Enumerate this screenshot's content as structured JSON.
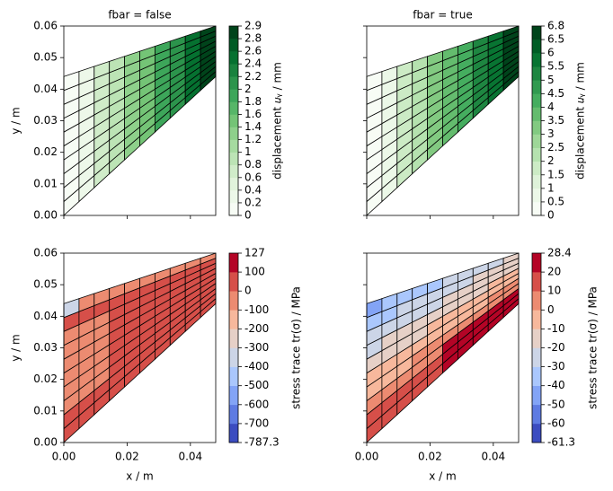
{
  "chart_data": [
    {
      "type": "mesh",
      "title": "fbar = false",
      "ylabel": "y / m",
      "xlim": [
        0,
        0.048
      ],
      "ylim": [
        0,
        0.06
      ],
      "xticks": [
        0,
        0.02,
        0.04
      ],
      "yticks": [
        {
          "value": 0,
          "label": "0.00"
        },
        {
          "value": 0.01,
          "label": "0.01"
        },
        {
          "value": 0.02,
          "label": "0.02"
        },
        {
          "value": 0.03,
          "label": "0.03"
        },
        {
          "value": 0.04,
          "label": "0.04"
        },
        {
          "value": 0.05,
          "label": "0.05"
        },
        {
          "value": 0.06,
          "label": "0.06"
        }
      ],
      "colormap": "Greens",
      "colorbar": {
        "label": "displacement 𝑢ᵧ / mm",
        "ticks": [
          0,
          0.2,
          0.4,
          0.6,
          0.8,
          1,
          1.2,
          1.4,
          1.6,
          1.8,
          2,
          2.2,
          2.4,
          2.6,
          2.8,
          2.9
        ]
      }
    },
    {
      "type": "mesh",
      "title": "fbar = true",
      "xlim": [
        0,
        0.048
      ],
      "ylim": [
        0,
        0.06
      ],
      "xticks": [
        0,
        0.02,
        0.04
      ],
      "yticks": [
        0,
        0.01,
        0.02,
        0.03,
        0.04,
        0.05,
        0.06
      ],
      "colormap": "Greens",
      "colorbar": {
        "label": "displacement 𝑢ᵧ / mm",
        "ticks": [
          0,
          0.5,
          1,
          1.5,
          2,
          2.5,
          3,
          3.5,
          4,
          4.5,
          5,
          5.5,
          6,
          6.5,
          6.8
        ]
      }
    },
    {
      "type": "mesh",
      "xlabel": "x / m",
      "ylabel": "y / m",
      "xlim": [
        0,
        0.048
      ],
      "ylim": [
        0,
        0.06
      ],
      "xticks": [
        {
          "value": 0,
          "label": "0.00"
        },
        {
          "value": 0.02,
          "label": "0.02"
        },
        {
          "value": 0.04,
          "label": "0.04"
        }
      ],
      "yticks": [
        {
          "value": 0,
          "label": "0.00"
        },
        {
          "value": 0.01,
          "label": "0.01"
        },
        {
          "value": 0.02,
          "label": "0.02"
        },
        {
          "value": 0.03,
          "label": "0.03"
        },
        {
          "value": 0.04,
          "label": "0.04"
        },
        {
          "value": 0.05,
          "label": "0.05"
        },
        {
          "value": 0.06,
          "label": "0.06"
        }
      ],
      "colormap": "coolwarm",
      "colorbar": {
        "label": "stress trace tr(σ) / MPa",
        "ticks": [
          -787.3,
          -700,
          -600,
          -500,
          -400,
          -300,
          -200,
          -100,
          0,
          100,
          127
        ]
      }
    },
    {
      "type": "mesh",
      "xlabel": "x / m",
      "xlim": [
        0,
        0.048
      ],
      "ylim": [
        0,
        0.06
      ],
      "xticks": [
        {
          "value": 0,
          "label": "0.00"
        },
        {
          "value": 0.02,
          "label": "0.02"
        },
        {
          "value": 0.04,
          "label": "0.04"
        }
      ],
      "yticks": [
        0,
        0.01,
        0.02,
        0.03,
        0.04,
        0.05,
        0.06
      ],
      "colormap": "coolwarm",
      "colorbar": {
        "label": "stress trace tr(σ) / MPa",
        "ticks": [
          -61.3,
          -60,
          -50,
          -40,
          -30,
          -20,
          -10,
          0,
          10,
          20,
          28.4
        ]
      }
    }
  ]
}
